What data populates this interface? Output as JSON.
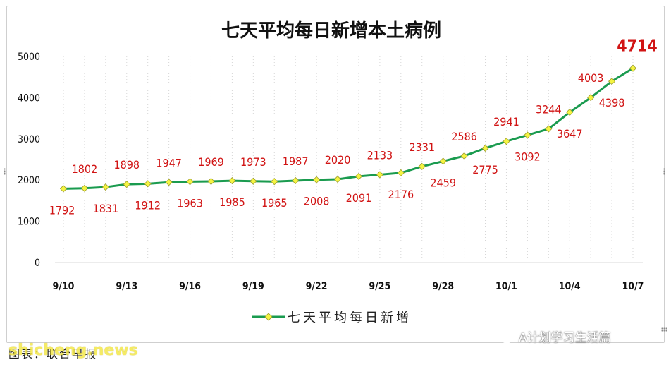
{
  "chart_data": {
    "type": "line",
    "title": "七天平均每日新增本土病例",
    "categories": [
      "9/10",
      "9/11",
      "9/12",
      "9/13",
      "9/14",
      "9/15",
      "9/16",
      "9/17",
      "9/18",
      "9/19",
      "9/20",
      "9/21",
      "9/22",
      "9/23",
      "9/24",
      "9/25",
      "9/26",
      "9/27",
      "9/28",
      "9/29",
      "9/30",
      "10/1",
      "10/2",
      "10/3",
      "10/4",
      "10/5",
      "10/6",
      "10/7"
    ],
    "x_tick_labels": [
      "9/10",
      "9/13",
      "9/16",
      "9/19",
      "9/22",
      "9/25",
      "9/28",
      "10/1",
      "10/4",
      "10/7"
    ],
    "x_tick_every": 3,
    "y_ticks": [
      0,
      1000,
      2000,
      3000,
      4000,
      5000
    ],
    "ylim": [
      0,
      5000
    ],
    "xlabel": "",
    "ylabel": "",
    "grid": {
      "vertical": true,
      "horizontal": false,
      "style": "dotted"
    },
    "legend_position": "bottom",
    "series": [
      {
        "name": "七天平均每日新增",
        "color": "#1a9b4f",
        "marker_color": "#f4f442",
        "values": [
          1792,
          1802,
          1831,
          1898,
          1912,
          1947,
          1963,
          1969,
          1985,
          1973,
          1965,
          1987,
          2008,
          2020,
          2091,
          2133,
          2176,
          2331,
          2459,
          2586,
          2775,
          2941,
          3092,
          3244,
          3647,
          4003,
          4398,
          4714
        ],
        "label_position": [
          "below",
          "above",
          "below",
          "above",
          "below",
          "above",
          "below",
          "above",
          "below",
          "above",
          "below",
          "above",
          "below",
          "above",
          "below",
          "above",
          "below",
          "above",
          "below",
          "above",
          "below",
          "above",
          "below",
          "above",
          "below",
          "above",
          "below",
          "highlight"
        ]
      }
    ],
    "label_color": "#d11414"
  },
  "footer": {
    "source": "图表：联合早报",
    "watermark": "shicheng.news",
    "wechat_account": "A计划学习生活篇"
  },
  "icons": {
    "wechat": "wechat-icon"
  }
}
